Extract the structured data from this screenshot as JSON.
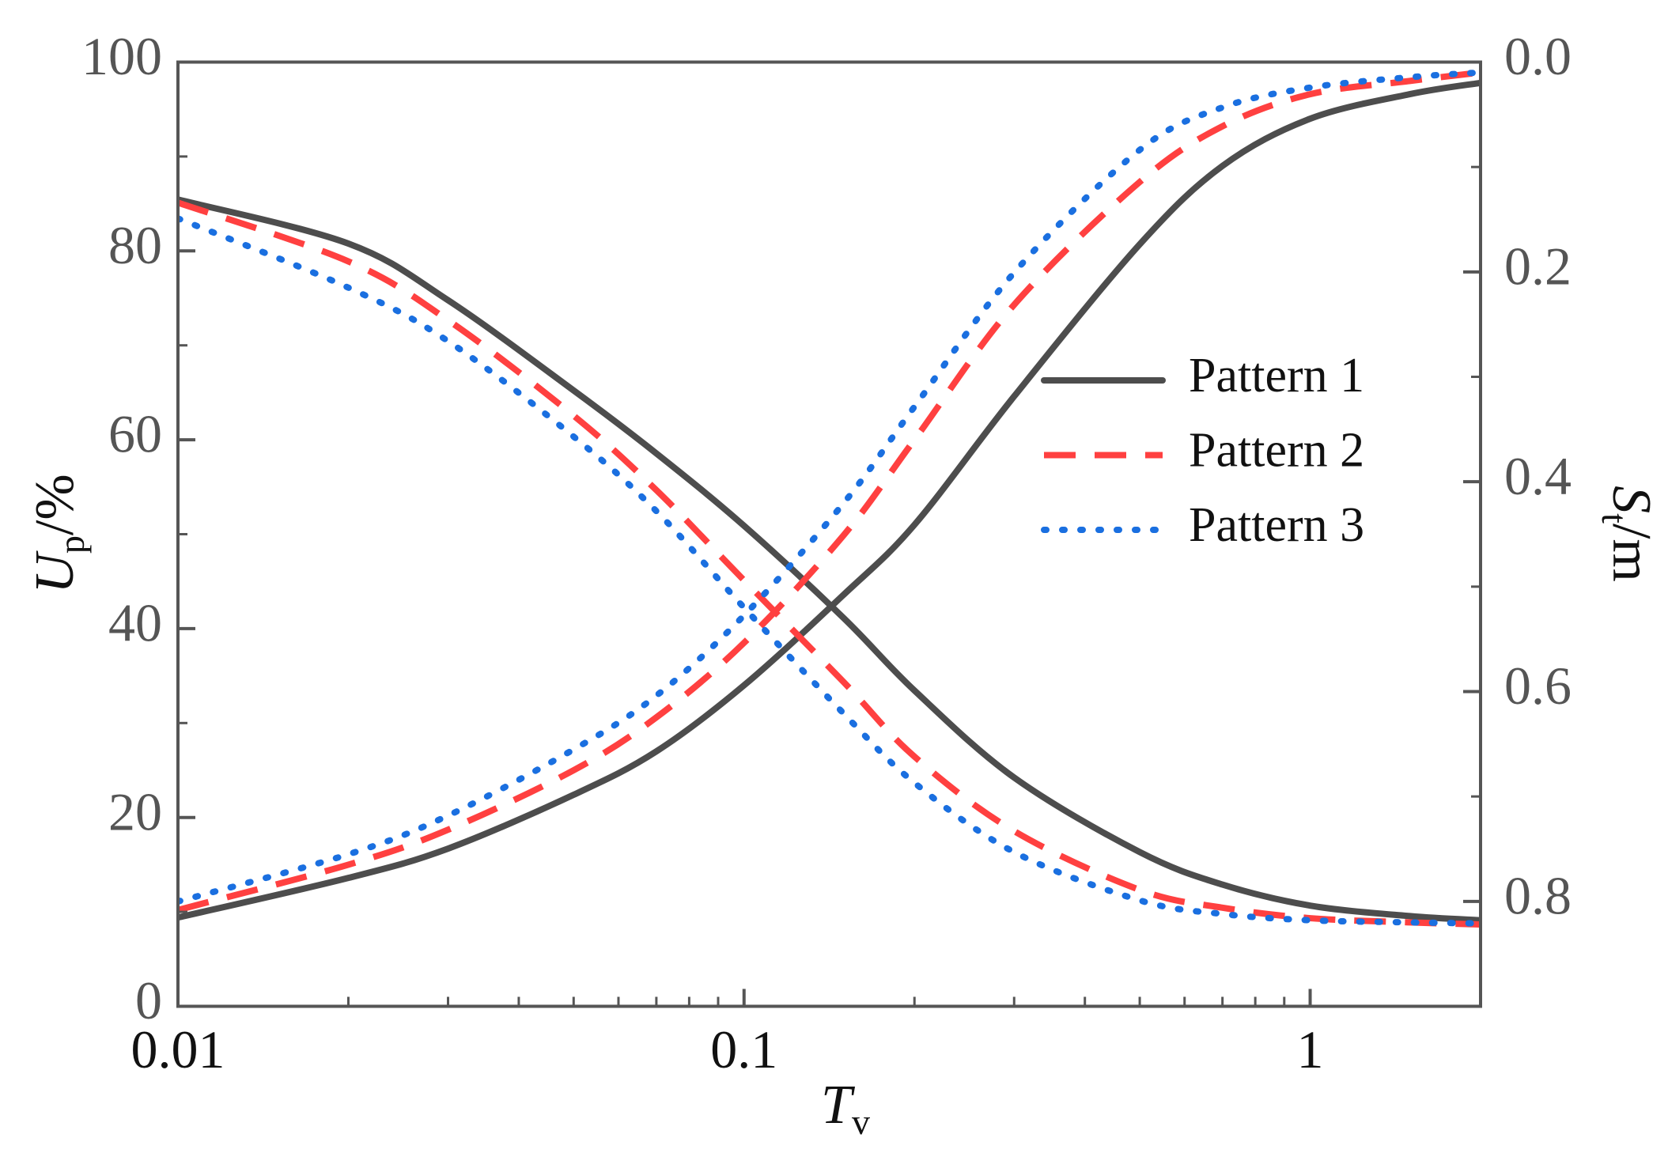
{
  "chart_data": {
    "type": "line",
    "xlabel": {
      "main": "T",
      "sub": "v"
    },
    "ylabel": {
      "main": "U",
      "sub": "p",
      "unit": "/%"
    },
    "y2label": {
      "main": "S",
      "sub": "t",
      "unit": "/m"
    },
    "x": [
      0.01,
      0.02,
      0.03,
      0.05,
      0.07,
      0.1,
      0.15,
      0.2,
      0.3,
      0.5,
      0.7,
      1,
      1.5,
      2
    ],
    "xlim": [
      0.01,
      2
    ],
    "xticks": [
      0.01,
      0.1,
      1
    ],
    "xscale": "log",
    "ylim": [
      0,
      100
    ],
    "yticks": [
      0,
      20,
      40,
      60,
      80,
      100
    ],
    "y2lim": [
      0.9,
      0
    ],
    "y2ticks": [
      {
        "value": 0,
        "label": "0.0"
      },
      0.2,
      0.4,
      0.6,
      0.8
    ],
    "legend": "center-right",
    "series": [
      {
        "name": "Pattern 1",
        "color": "#4d4d4d",
        "style": "solid",
        "values": [
          9.4,
          13.6,
          16.7,
          22.4,
          27,
          34,
          43.6,
          51,
          64.6,
          80.7,
          89,
          94,
          96.6,
          97.8
        ],
        "y2_values": [
          0.131,
          0.173,
          0.227,
          0.313,
          0.373,
          0.442,
          0.53,
          0.599,
          0.682,
          0.753,
          0.784,
          0.804,
          0.814,
          0.818
        ]
      },
      {
        "name": "Pattern 2",
        "color": "#ff4040",
        "style": "dashed",
        "values": [
          10.2,
          15,
          18.7,
          25,
          30.6,
          38.5,
          49.9,
          60,
          74.3,
          87.3,
          93.2,
          96.6,
          98,
          98.9
        ],
        "y2_values": [
          0.134,
          0.19,
          0.246,
          0.337,
          0.408,
          0.494,
          0.591,
          0.662,
          0.733,
          0.789,
          0.806,
          0.816,
          0.82,
          0.822
        ]
      },
      {
        "name": "Pattern 3",
        "color": "#1a6fe0",
        "style": "dotted",
        "values": [
          11.1,
          16.1,
          20.2,
          27.2,
          32.9,
          41.4,
          53.3,
          63.5,
          77.7,
          90.7,
          95.2,
          97.3,
          98.4,
          98.9
        ],
        "y2_values": [
          0.149,
          0.215,
          0.266,
          0.357,
          0.428,
          0.52,
          0.621,
          0.687,
          0.753,
          0.799,
          0.812,
          0.818,
          0.82,
          0.821
        ]
      }
    ]
  }
}
